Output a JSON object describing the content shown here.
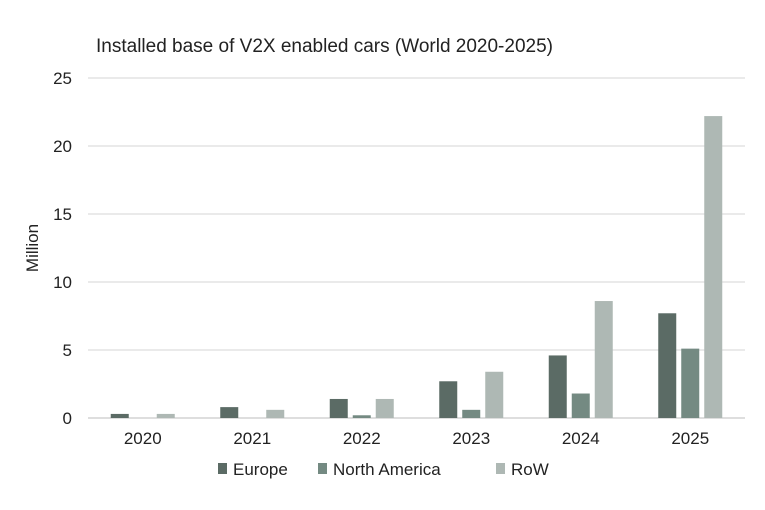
{
  "chart_data": {
    "type": "bar",
    "title": "Installed base of V2X enabled cars (World 2020-2025)",
    "xlabel": "",
    "ylabel": "Million",
    "ylim": [
      0,
      25
    ],
    "yticks": [
      0,
      5,
      10,
      15,
      20,
      25
    ],
    "grid": true,
    "legend_position": "bottom",
    "categories": [
      "2020",
      "2021",
      "2022",
      "2023",
      "2024",
      "2025"
    ],
    "series": [
      {
        "name": "Europe",
        "color": "#5b6b65",
        "values": [
          0.3,
          0.8,
          1.4,
          2.7,
          4.6,
          7.7
        ]
      },
      {
        "name": "North America",
        "color": "#748a82",
        "values": [
          0.0,
          0.0,
          0.2,
          0.6,
          1.8,
          5.1
        ]
      },
      {
        "name": "RoW",
        "color": "#aeb8b4",
        "values": [
          0.3,
          0.6,
          1.4,
          3.4,
          8.6,
          22.2
        ]
      }
    ]
  }
}
